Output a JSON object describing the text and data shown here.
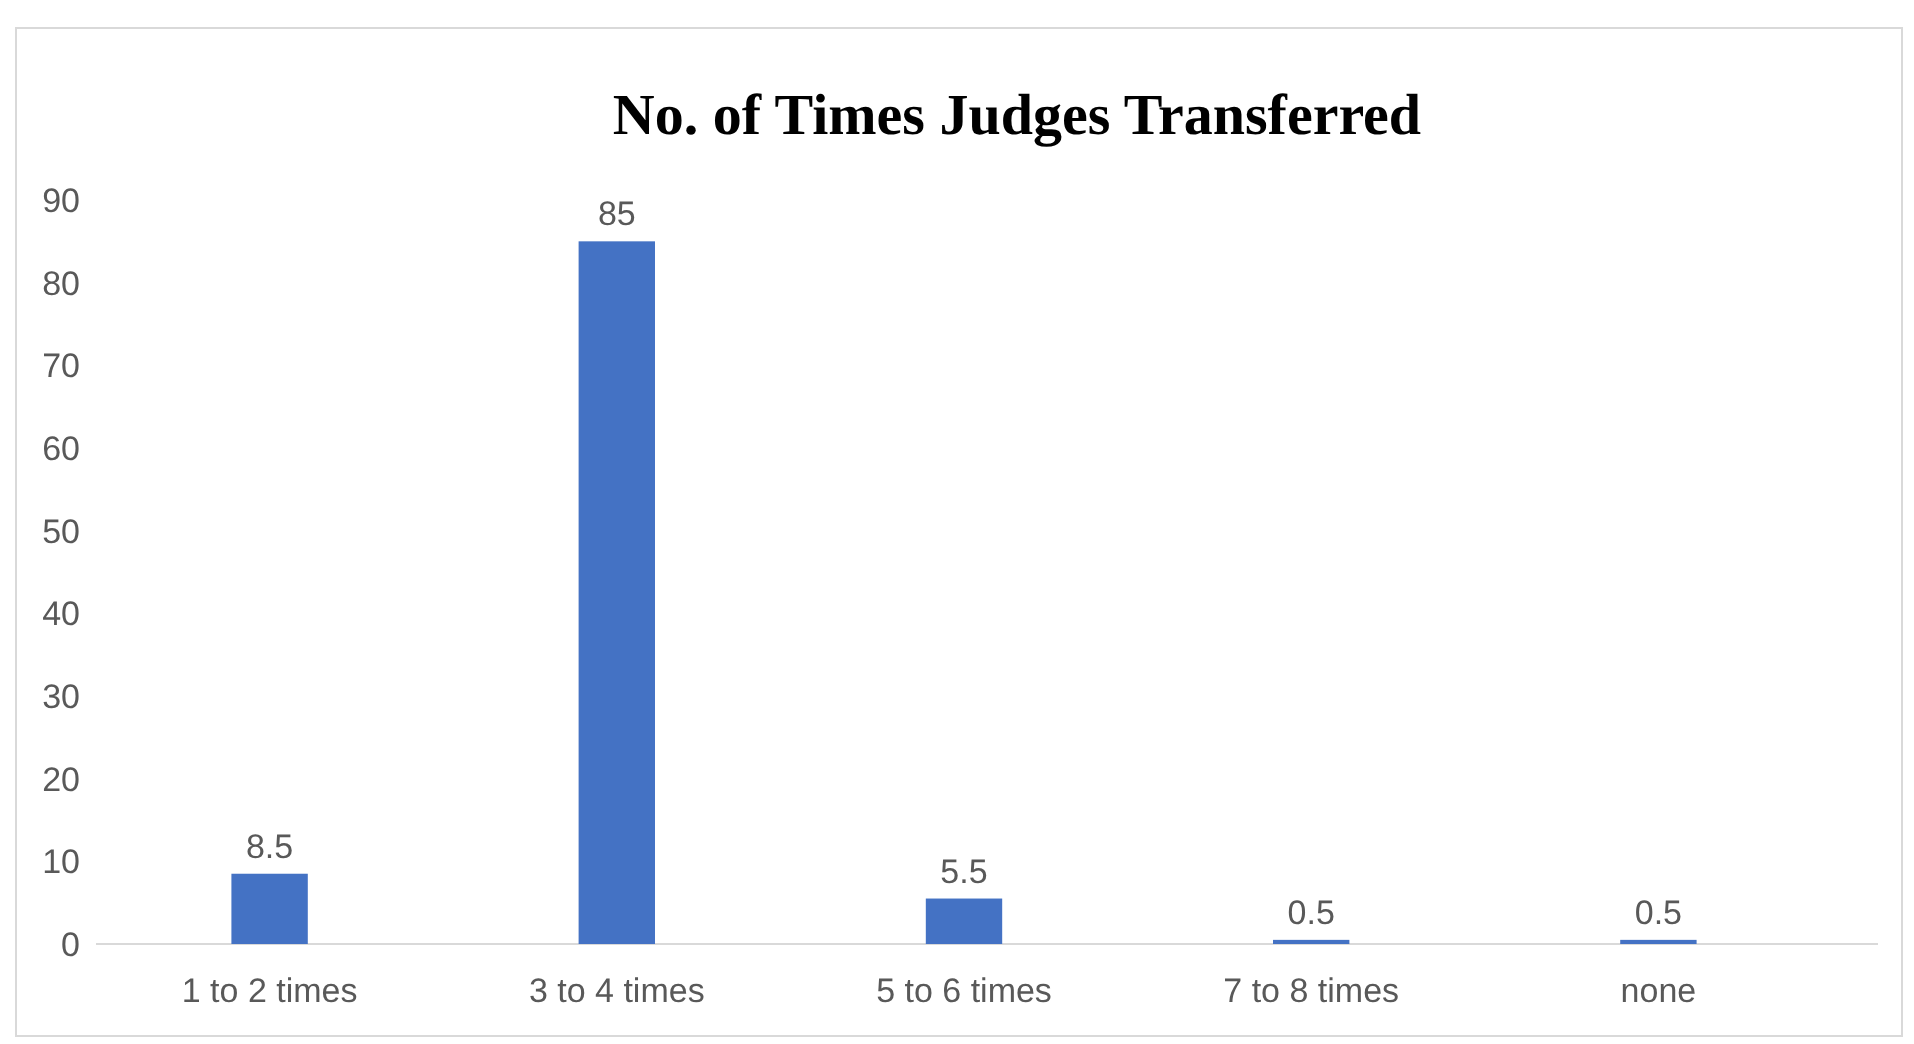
{
  "chart_data": {
    "type": "bar",
    "title": "No. of Times Judges Transferred",
    "categories": [
      "1 to 2 times",
      "3 to 4 times",
      "5 to 6 times",
      "7 to 8 times",
      "none"
    ],
    "values": [
      8.5,
      85,
      5.5,
      0.5,
      0.5
    ],
    "color": "#4472c4",
    "ylim": [
      0,
      90
    ],
    "yticks": [
      0,
      10,
      20,
      30,
      40,
      50,
      60,
      70,
      80,
      90
    ],
    "grid": false,
    "data_labels": true
  }
}
